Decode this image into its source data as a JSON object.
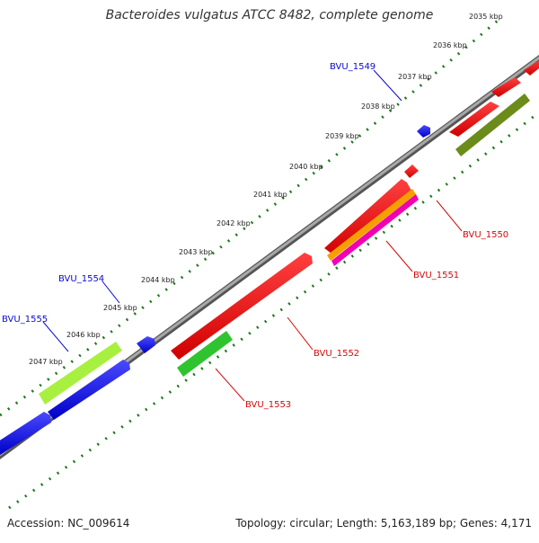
{
  "title": "Bacteroides vulgatus ATCC 8482, complete genome",
  "footer": {
    "accession": "Accession: NC_009614",
    "summary": "Topology: circular; Length: 5,163,189 bp; Genes: 4,171"
  },
  "scale_labels": [
    "2035 kbp",
    "2036 kbp",
    "2037 kbp",
    "2038 kbp",
    "2039 kbp",
    "2040 kbp",
    "2041 kbp",
    "2042 kbp",
    "2043 kbp",
    "2044 kbp",
    "2045 kbp",
    "2046 kbp",
    "2047 kbp"
  ],
  "gene_labels": {
    "forward": [
      "BVU_1549",
      "BVU_1554",
      "BVU_1555"
    ],
    "reverse": [
      "BVU_1550",
      "BVU_1551",
      "BVU_1552",
      "BVU_1553"
    ]
  },
  "colors": {
    "forward_gene": "#0a0aee",
    "reverse_gene": "#ee0a0a",
    "forward_label": "#0a0ad2",
    "reverse_label": "#d20a0a",
    "backbone": "#808080",
    "tick": "#1a7a1a",
    "orange_feature": "#f5a000",
    "magenta_feature": "#f000b0",
    "olive_feature": "#6b8c1a",
    "green_feature": "#2fc42f",
    "lime_feature": "#a8f040"
  }
}
